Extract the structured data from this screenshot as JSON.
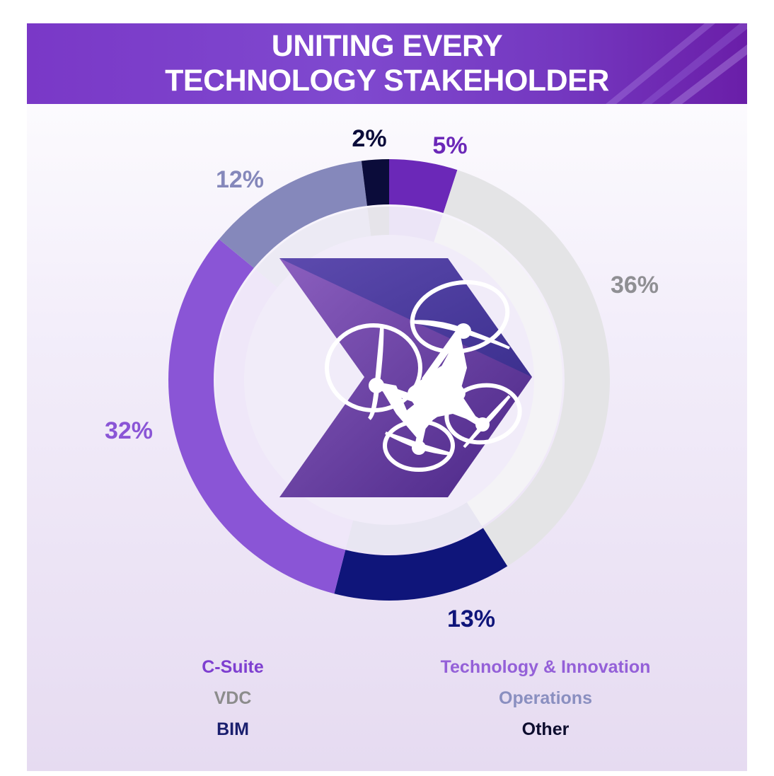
{
  "header": {
    "title_line1": "UNITING EVERY",
    "title_line2": "TECHNOLOGY STAKEHOLDER"
  },
  "chart_data": {
    "type": "pie",
    "donut": true,
    "categories": [
      "Technology & Innovation",
      "VDC",
      "BIM",
      "C-Suite",
      "Operations",
      "Other"
    ],
    "values": [
      5,
      36,
      13,
      32,
      12,
      2
    ],
    "value_labels": [
      "5%",
      "36%",
      "13%",
      "32%",
      "12%",
      "2%"
    ],
    "colors": [
      "#6b28b8",
      "#e4e4e6",
      "#0f157a",
      "#8a55d6",
      "#8588bb",
      "#0b0c3a"
    ],
    "center_icon": "drone-icon"
  },
  "legend": {
    "left": [
      {
        "label": "C-Suite",
        "color": "#7e3fd0"
      },
      {
        "label": "VDC",
        "color": "#8c8c8c"
      },
      {
        "label": "BIM",
        "color": "#1a1f6e"
      }
    ],
    "right": [
      {
        "label": "Technology & Innovation",
        "color": "#9460d8"
      },
      {
        "label": "Operations",
        "color": "#8a8fc0"
      },
      {
        "label": "Other",
        "color": "#0d0d2e"
      }
    ]
  }
}
